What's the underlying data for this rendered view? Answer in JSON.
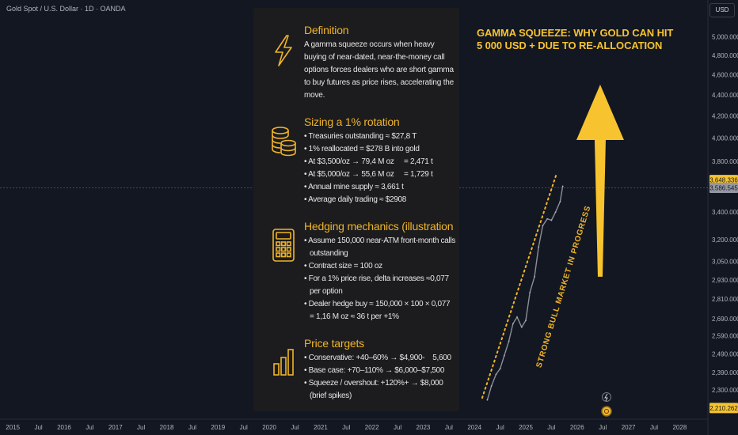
{
  "symbol_title": "Gold Spot / U.S. Dollar · 1D · OANDA",
  "currency": "USD",
  "headline": [
    "GAMMA SQUEEZE: WHY GOLD CAN HIT",
    "5 000 USD + DUE TO RE-ALLOCATION"
  ],
  "trend_label": "STRONG BULL MARKET IN PROGRESS",
  "colors": {
    "background": "#131722",
    "panel": "#1c1c1e",
    "accent": "#f0b429",
    "price_line": "#8c8f98",
    "price_tag": "#f7c32e"
  },
  "panel": {
    "sections": [
      {
        "icon": "lightning-icon",
        "title": "Definition",
        "text": "A gamma squeeze occurs when heavy buying of near-dated, near-the-money call options forces dealers who are short gamma to buy futures as price rises, accelerating the move."
      },
      {
        "icon": "coins-stack-icon",
        "title": "Sizing a 1% rotation",
        "items": [
          "• Treasuries outstanding ≈ $27,8 T",
          "• 1% reallocated = $278 B into gold",
          "• At $3,500/oz → 79,4 M oz     = 2,471 t",
          "• At $5,000/oz → 55,6 M oz     = 1,729 t",
          "• Annual mine supply ≈ 3,661 t",
          "• Average daily trading ≈ $2908"
        ]
      },
      {
        "icon": "calculator-icon",
        "title": "Hedging mechanics (illustration",
        "items": [
          "• Assume 150,000 near-ATM front-month calls outstanding",
          "• Contract size = 100 oz",
          "• For a 1% price rise, delta increases ≈0,077 per option",
          "• Dealer hedge buy ≈ 150,000 × 100 × 0,077 = 1,16 M oz ≈ 36 t per +1%"
        ]
      },
      {
        "icon": "bar-chart-icon",
        "title": "Price targets",
        "items": [
          "• Conservative: +40–60% → $4,900-    5,600",
          "• Base case: +70–110% → $6,000–$7,500",
          "• Squeeze / overshout: +120%+ → $8,000 (brief spikes)"
        ]
      }
    ]
  },
  "chart_data": {
    "type": "line",
    "title": "Gold Spot / U.S. Dollar · 1D · OANDA",
    "xlabel": "",
    "ylabel": "",
    "y_scale": "log",
    "ylim": [
      2210,
      5100
    ],
    "x_range": [
      2014.75,
      2028.55
    ],
    "x_ticks": [
      {
        "label": "2015",
        "x": 2015.0
      },
      {
        "label": "Jul",
        "x": 2015.5
      },
      {
        "label": "2016",
        "x": 2016.0
      },
      {
        "label": "Jul",
        "x": 2016.5
      },
      {
        "label": "2017",
        "x": 2017.0
      },
      {
        "label": "Jul",
        "x": 2017.5
      },
      {
        "label": "2018",
        "x": 2018.0
      },
      {
        "label": "Jul",
        "x": 2018.5
      },
      {
        "label": "2019",
        "x": 2019.0
      },
      {
        "label": "Jul",
        "x": 2019.5
      },
      {
        "label": "2020",
        "x": 2020.0
      },
      {
        "label": "Jul",
        "x": 2020.5
      },
      {
        "label": "2021",
        "x": 2021.0
      },
      {
        "label": "Jul",
        "x": 2021.5
      },
      {
        "label": "2022",
        "x": 2022.0
      },
      {
        "label": "Jul",
        "x": 2022.5
      },
      {
        "label": "2023",
        "x": 2023.0
      },
      {
        "label": "Jul",
        "x": 2023.5
      },
      {
        "label": "2024",
        "x": 2024.0
      },
      {
        "label": "Jul",
        "x": 2024.5
      },
      {
        "label": "2025",
        "x": 2025.0
      },
      {
        "label": "Jul",
        "x": 2025.5
      },
      {
        "label": "2026",
        "x": 2026.0
      },
      {
        "label": "Jul",
        "x": 2026.5
      },
      {
        "label": "2027",
        "x": 2027.0
      },
      {
        "label": "Jul",
        "x": 2027.5
      },
      {
        "label": "2028",
        "x": 2028.0
      }
    ],
    "y_ticks": [
      {
        "label": "5,000.000",
        "y": 5000
      },
      {
        "label": "4,800.000",
        "y": 4800
      },
      {
        "label": "4,600.000",
        "y": 4600
      },
      {
        "label": "4,400.000",
        "y": 4400
      },
      {
        "label": "4,200.000",
        "y": 4200
      },
      {
        "label": "4,000.000",
        "y": 4000
      },
      {
        "label": "3,800.000",
        "y": 3800
      },
      {
        "label": "3,400.000",
        "y": 3400
      },
      {
        "label": "3,200.000",
        "y": 3200
      },
      {
        "label": "3,050.000",
        "y": 3050
      },
      {
        "label": "2,930.000",
        "y": 2930
      },
      {
        "label": "2,810.000",
        "y": 2810
      },
      {
        "label": "2,690.000",
        "y": 2690
      },
      {
        "label": "2,590.000",
        "y": 2590
      },
      {
        "label": "2,490.000",
        "y": 2490
      },
      {
        "label": "2,390.000",
        "y": 2390
      },
      {
        "label": "2,300.000",
        "y": 2300
      }
    ],
    "price_tags": [
      {
        "label": "3,648.336",
        "y": 3648.336,
        "style": "highlight"
      },
      {
        "label": "3,586.545",
        "y": 3586.545,
        "style": "current"
      },
      {
        "label": "2,210.262",
        "y": 2210.262,
        "style": "highlight"
      }
    ],
    "current_price_line": 3586.545,
    "series": [
      {
        "x": [
          2024.25,
          2024.33,
          2024.42,
          2024.5,
          2024.58,
          2024.67,
          2024.75,
          2024.83,
          2024.92,
          2025.0,
          2025.08,
          2025.17,
          2025.25,
          2025.33,
          2025.42,
          2025.5,
          2025.58,
          2025.67,
          2025.72
        ],
        "y": [
          2250,
          2320,
          2380,
          2410,
          2480,
          2560,
          2660,
          2700,
          2640,
          2680,
          2850,
          2950,
          3150,
          3300,
          3350,
          3340,
          3400,
          3480,
          3600
        ]
      }
    ],
    "trend_line": {
      "x": [
        2024.15,
        2025.6
      ],
      "y": [
        2260,
        3700
      ]
    },
    "target_arrow": {
      "x": 2026.45,
      "from": 2950,
      "to": 4500
    },
    "grid": false
  }
}
